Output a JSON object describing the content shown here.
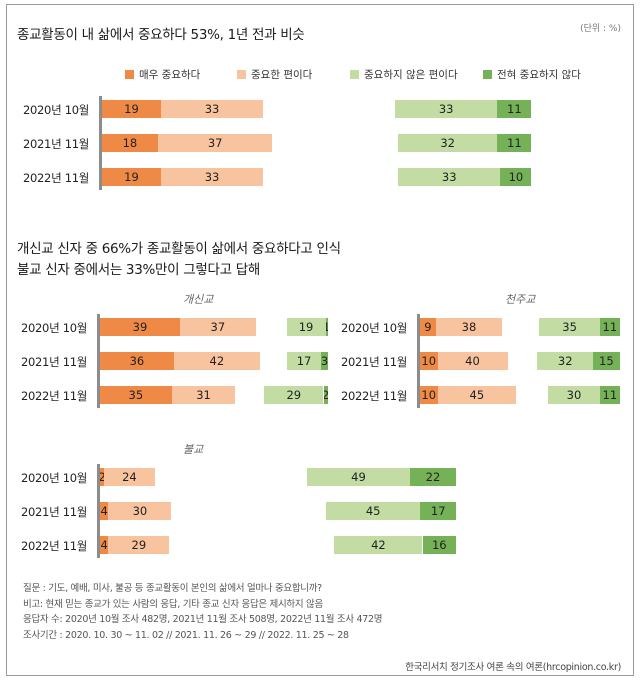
{
  "header": {
    "title": "종교활동이 내 삶에서 중요하다 53%, 1년 전과 비슷",
    "unit": "(단위 : %)"
  },
  "subtitle": {
    "line1": "개신교 신자 중 66%가 종교활동이 삶에서 중요하다고 인식",
    "line2": "불교 신자 중에서는 33%만이 그렇다고 답해"
  },
  "colors": {
    "very_important": "#ee8a45",
    "important": "#f8c49f",
    "not_important": "#c2dca4",
    "not_at_all": "#75b257"
  },
  "chart_data": [
    {
      "type": "bar",
      "panel": "전체",
      "categories": [
        "2020년 10월",
        "2021년 11월",
        "2022년 11월"
      ],
      "series": [
        {
          "name": "매우 중요하다",
          "values": [
            19,
            18,
            19
          ]
        },
        {
          "name": "중요한 편이다",
          "values": [
            33,
            37,
            33
          ]
        },
        {
          "name": "중요하지 않은 편이다",
          "values": [
            33,
            32,
            33
          ]
        },
        {
          "name": "전혀 중요하지 않다",
          "values": [
            11,
            11,
            10
          ]
        }
      ]
    },
    {
      "type": "bar",
      "panel": "개신교",
      "title": "개신교",
      "categories": [
        "2020년 10월",
        "2021년 11월",
        "2022년 11월"
      ],
      "series": [
        {
          "name": "매우 중요하다",
          "values": [
            39,
            36,
            35
          ]
        },
        {
          "name": "중요한 편이다",
          "values": [
            37,
            42,
            31
          ]
        },
        {
          "name": "중요하지 않은 편이다",
          "values": [
            19,
            17,
            29
          ]
        },
        {
          "name": "전혀 중요하지 않다",
          "values": [
            1,
            3,
            2
          ]
        }
      ]
    },
    {
      "type": "bar",
      "panel": "천주교",
      "title": "천주교",
      "categories": [
        "2020년 10월",
        "2021년 11월",
        "2022년 11월"
      ],
      "series": [
        {
          "name": "매우 중요하다",
          "values": [
            9,
            10,
            10
          ]
        },
        {
          "name": "중요한 편이다",
          "values": [
            38,
            40,
            45
          ]
        },
        {
          "name": "중요하지 않은 편이다",
          "values": [
            35,
            32,
            30
          ]
        },
        {
          "name": "전혀 중요하지 않다",
          "values": [
            11,
            15,
            11
          ]
        }
      ]
    },
    {
      "type": "bar",
      "panel": "불교",
      "title": "불교",
      "categories": [
        "2020년 10월",
        "2021년 11월",
        "2022년 11월"
      ],
      "series": [
        {
          "name": "매우 중요하다",
          "values": [
            2,
            4,
            4
          ]
        },
        {
          "name": "중요한 편이다",
          "values": [
            24,
            30,
            29
          ]
        },
        {
          "name": "중요하지 않은 편이다",
          "values": [
            49,
            45,
            42
          ]
        },
        {
          "name": "전혀 중요하지 않다",
          "values": [
            22,
            17,
            16
          ]
        }
      ]
    }
  ],
  "notes": [
    "질문 : 기도, 예배, 미사, 불공 등 종교활동이 본인의 삶에서 얼마나 중요합니까?",
    "비고: 현재 믿는 종교가 있는 사람의 응답, 기타 종교 신자 응답은 제시하지 않음",
    "응답자 수: 2020년 10월 조사 482명, 2021년 11월 조사 508명, 2022년 11월 조사 472명",
    "조사기간 : 2020. 10. 30 ~ 11. 02 // 2021. 11. 26 ~ 29 // 2022. 11. 25 ~ 28"
  ],
  "source": "한국리서치 정기조사 여론 속의 여론(hrcopinion.co.kr)"
}
